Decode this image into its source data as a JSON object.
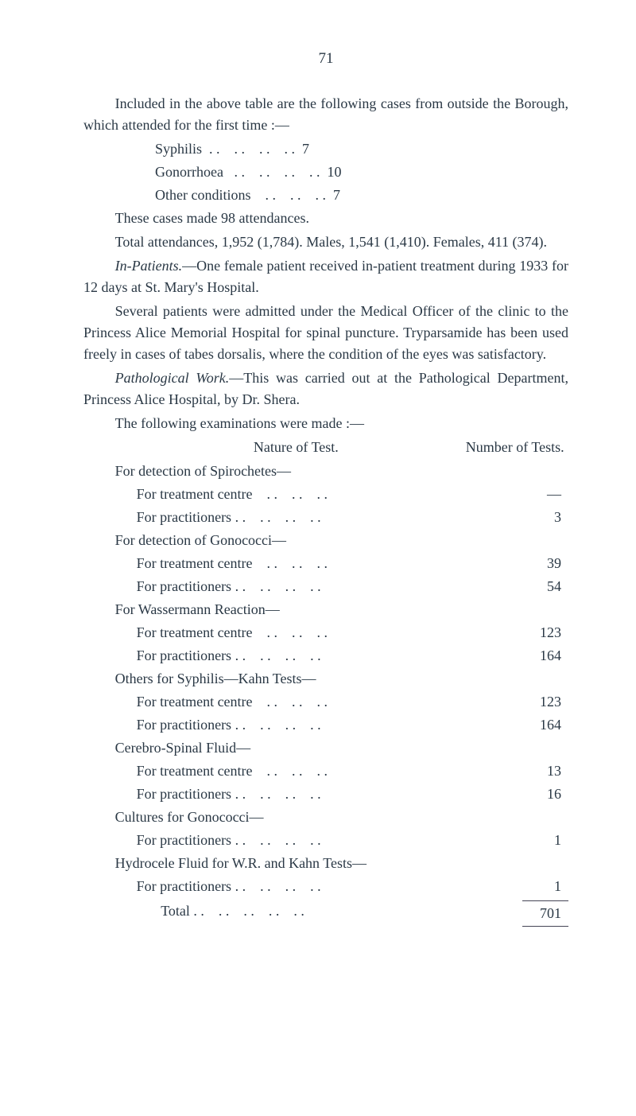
{
  "pageNumber": "71",
  "p1": "Included in the above table are the following cases from outside the Borough, which attended for the first time :—",
  "list1": [
    {
      "label": "Syphilis",
      "dots": "  . .    . .    . .    . .  ",
      "val": "7"
    },
    {
      "label": "Gonorrhoea",
      "dots": "   . .    . .    . .    . .  ",
      "val": "10"
    },
    {
      "label": "Other conditions",
      "dots": "    . .    . .    . .  ",
      "val": "7"
    }
  ],
  "p2": "These cases made 98 attendances.",
  "p3": "Total attendances, 1,952 (1,784).  Males, 1,541 (1,410). Females, 411 (374).",
  "p4a": "In-Patients.",
  "p4b": "—One female patient received in-patient treatment during 1933 for 12 days at St. Mary's Hospital.",
  "p5": "Several patients were admitted under the Medical Officer of the clinic to the Princess Alice Memorial Hospital for spinal puncture.  Tryparsamide has been used freely in cases of tabes dorsalis, where the condition of the eyes was satisfactory.",
  "p6a": "Pathological Work.",
  "p6b": "—This was carried out at the Pathological Department, Princess Alice Hospital, by Dr. Shera.",
  "p7": "The following examinations were made :—",
  "header": {
    "left": "Nature of Test.",
    "right": "Number of Tests."
  },
  "sections": [
    {
      "title": "For detection of Spirochetes—",
      "rows": [
        {
          "label": "For treatment centre",
          "dots": "    . .    . .    . .  ",
          "val": "—"
        },
        {
          "label": "For practitioners . .",
          "dots": "    . .    . .    . .  ",
          "val": "3"
        }
      ]
    },
    {
      "title": "For detection of Gonococci—",
      "rows": [
        {
          "label": "For treatment centre",
          "dots": "    . .    . .    . .  ",
          "val": "39"
        },
        {
          "label": "For practitioners . .",
          "dots": "    . .    . .    . .  ",
          "val": "54"
        }
      ]
    },
    {
      "title": "For Wassermann Reaction—",
      "rows": [
        {
          "label": "For treatment centre",
          "dots": "    . .    . .    . .  ",
          "val": "123"
        },
        {
          "label": "For practitioners . .",
          "dots": "    . .    . .    . .  ",
          "val": "164"
        }
      ]
    },
    {
      "title": "Others for Syphilis—Kahn Tests—",
      "rows": [
        {
          "label": "For treatment centre",
          "dots": "    . .    . .    . .  ",
          "val": "123"
        },
        {
          "label": "For practitioners . .",
          "dots": "    . .    . .    . .  ",
          "val": "164"
        }
      ]
    },
    {
      "title": "Cerebro-Spinal Fluid—",
      "rows": [
        {
          "label": "For treatment centre",
          "dots": "    . .    . .    . .  ",
          "val": "13"
        },
        {
          "label": "For practitioners . .",
          "dots": "    . .    . .    . .  ",
          "val": "16"
        }
      ]
    },
    {
      "title": "Cultures for Gonococci—",
      "rows": [
        {
          "label": "For practitioners . .",
          "dots": "    . .    . .    . .  ",
          "val": "1"
        }
      ]
    },
    {
      "title": "Hydrocele Fluid for W.R. and Kahn Tests—",
      "rows": [
        {
          "label": "For practitioners . .",
          "dots": "    . .    . .    . .  ",
          "val": "1"
        }
      ]
    }
  ],
  "total": {
    "label": "Total . .",
    "dots": "    . .    . .    . .    . .  ",
    "val": "701"
  }
}
